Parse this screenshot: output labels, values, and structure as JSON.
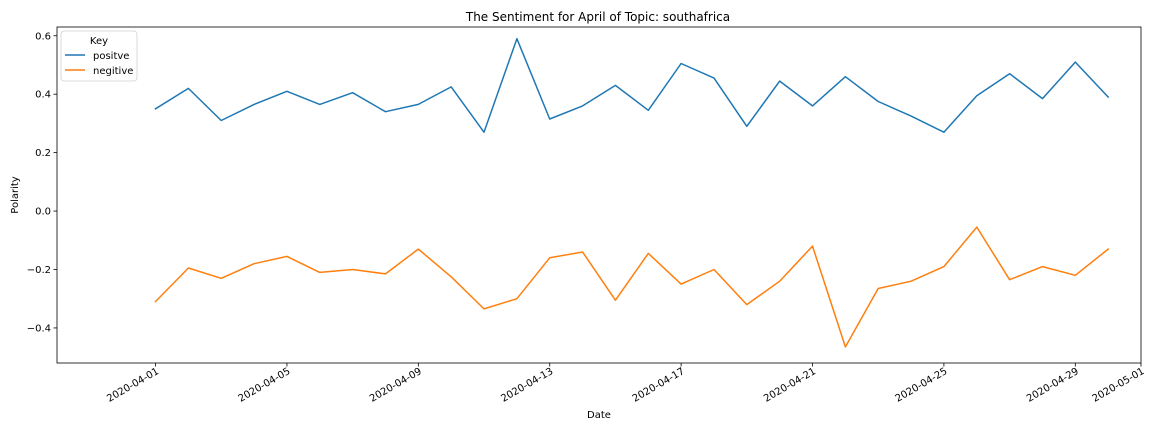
{
  "chart_data": {
    "type": "line",
    "title": "The Sentiment for April of Topic: southafrica",
    "xlabel": "Date",
    "ylabel": "Polarity",
    "legend_title": "Key",
    "legend_position": "top-left",
    "grid": false,
    "xlim": [
      "2020-03-29",
      "2020-05-01"
    ],
    "ylim": [
      -0.52,
      0.63
    ],
    "x_ticks": [
      "2020-04-01",
      "2020-04-05",
      "2020-04-09",
      "2020-04-13",
      "2020-04-17",
      "2020-04-21",
      "2020-04-25",
      "2020-04-29",
      "2020-05-01"
    ],
    "y_ticks": [
      "0.6",
      "0.4",
      "0.2",
      "0.0",
      "−0.2",
      "−0.4"
    ],
    "y_tick_values": [
      0.6,
      0.4,
      0.2,
      0.0,
      -0.2,
      -0.4
    ],
    "x": [
      "2020-04-01",
      "2020-04-02",
      "2020-04-03",
      "2020-04-04",
      "2020-04-05",
      "2020-04-06",
      "2020-04-07",
      "2020-04-08",
      "2020-04-09",
      "2020-04-10",
      "2020-04-11",
      "2020-04-12",
      "2020-04-13",
      "2020-04-14",
      "2020-04-15",
      "2020-04-16",
      "2020-04-17",
      "2020-04-18",
      "2020-04-19",
      "2020-04-20",
      "2020-04-21",
      "2020-04-22",
      "2020-04-23",
      "2020-04-24",
      "2020-04-25",
      "2020-04-26",
      "2020-04-27",
      "2020-04-28",
      "2020-04-29",
      "2020-04-30"
    ],
    "series": [
      {
        "name": "positve",
        "color": "#1f77b4",
        "values": [
          0.35,
          0.42,
          0.31,
          0.365,
          0.41,
          0.365,
          0.405,
          0.34,
          0.365,
          0.425,
          0.27,
          0.59,
          0.315,
          0.36,
          0.43,
          0.345,
          0.505,
          0.455,
          0.29,
          0.445,
          0.36,
          0.46,
          0.375,
          0.325,
          0.27,
          0.395,
          0.47,
          0.385,
          0.51,
          0.39
        ]
      },
      {
        "name": "negitive",
        "color": "#ff7f0e",
        "values": [
          -0.31,
          -0.195,
          -0.23,
          -0.18,
          -0.155,
          -0.21,
          -0.2,
          -0.215,
          -0.13,
          -0.225,
          -0.335,
          -0.3,
          -0.16,
          -0.14,
          -0.305,
          -0.145,
          -0.25,
          -0.2,
          -0.32,
          -0.24,
          -0.12,
          -0.465,
          -0.265,
          -0.24,
          -0.19,
          -0.055,
          -0.235,
          -0.19,
          -0.22,
          -0.13
        ]
      }
    ]
  }
}
